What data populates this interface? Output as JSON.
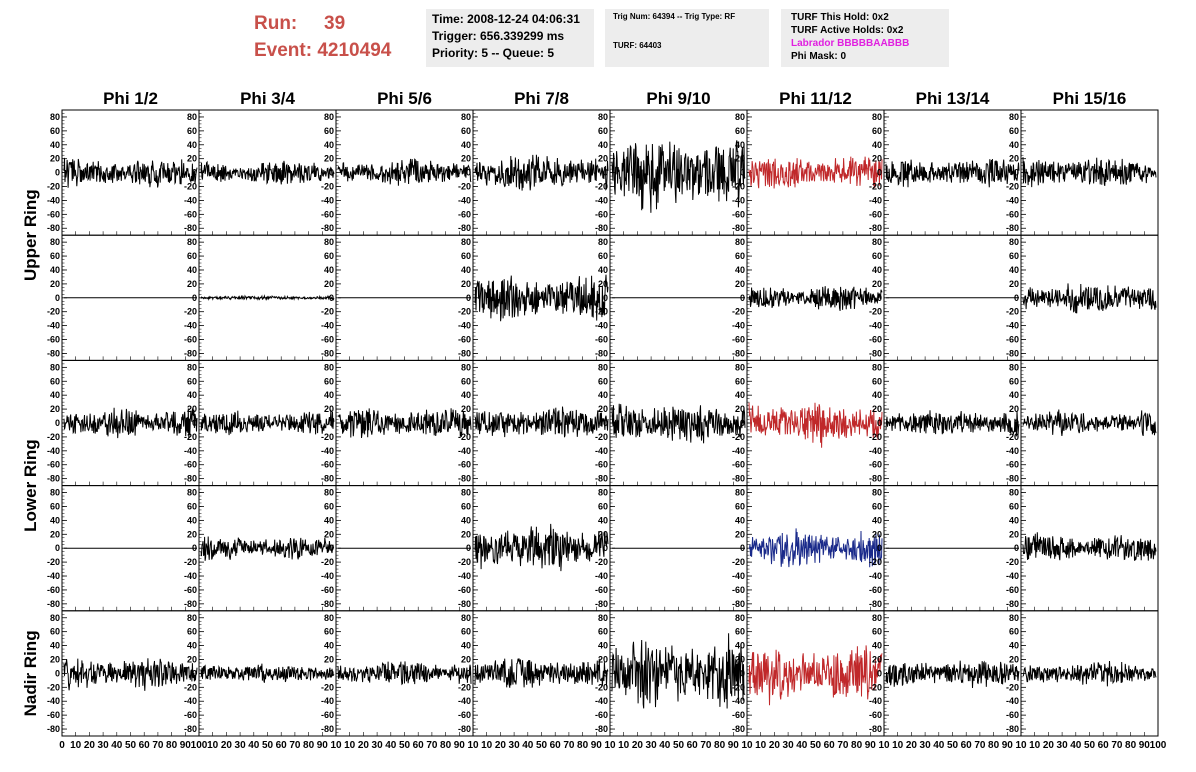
{
  "header": {
    "run_label": "Run:",
    "run_value": "39",
    "event_label": "Event:",
    "event_value": "4210494",
    "time": "Time: 2008-12-24 04:06:31",
    "trigger": "Trigger: 656.339299 ms",
    "priority": "Priority: 5 -- Queue: 5",
    "trig_num": "Trig Num: 64394 -- Trig Type: RF",
    "turf": "TURF: 64403",
    "turf_this_hold": "TURF This Hold: 0x2",
    "turf_active_holds": "TURF Active Holds: 0x2",
    "labrador": "Labrador BBBBBAABBB",
    "phi_mask": "Phi Mask: 0"
  },
  "colors": {
    "run_text": "#c8504a",
    "labrador_text": "#e020e0",
    "trace_default": "#000000",
    "trace_red": "#c0282a",
    "trace_blue": "#1a2a8a"
  },
  "chart_data": {
    "type": "line",
    "columns": [
      "Phi 1/2",
      "Phi 3/4",
      "Phi 5/6",
      "Phi 7/8",
      "Phi 9/10",
      "Phi 11/12",
      "Phi 13/14",
      "Phi 15/16"
    ],
    "rows": [
      "Upper Ring",
      "Lower Ring",
      "Nadir Ring"
    ],
    "xlim": [
      0,
      100
    ],
    "ylim": [
      -90,
      90
    ],
    "y_ticks": [
      -80,
      -60,
      -40,
      -20,
      0,
      20,
      40,
      60,
      80
    ],
    "x_ticks_first": [
      "0",
      "10",
      "20",
      "30",
      "40",
      "50",
      "60",
      "70",
      "80",
      "90",
      "100"
    ],
    "x_ticks_other": [
      "10",
      "20",
      "30",
      "40",
      "50",
      "60",
      "70",
      "80",
      "90",
      "10"
    ],
    "x_ticks_last": [
      "10",
      "20",
      "30",
      "40",
      "50",
      "60",
      "70",
      "80",
      "90",
      "100"
    ],
    "panels": [
      [
        {
          "amp": 15,
          "seed": 1,
          "color": "black"
        },
        {
          "amp": 13,
          "seed": 2,
          "color": "black"
        },
        {
          "amp": 14,
          "seed": 3,
          "color": "black"
        },
        {
          "amp": 20,
          "seed": 4,
          "color": "black"
        },
        {
          "amp": 40,
          "seed": 5,
          "color": "black"
        },
        {
          "amp": 18,
          "seed": 6,
          "color": "red"
        },
        {
          "amp": 15,
          "seed": 7,
          "color": "black"
        },
        {
          "amp": 16,
          "seed": 8,
          "color": "black"
        }
      ],
      [
        {
          "amp": 0,
          "seed": 9,
          "color": "black"
        },
        {
          "amp": 2,
          "seed": 10,
          "color": "black"
        },
        {
          "amp": 0,
          "seed": 11,
          "color": "black"
        },
        {
          "amp": 25,
          "seed": 12,
          "color": "black"
        },
        {
          "amp": 0,
          "seed": 13,
          "color": "black"
        },
        {
          "amp": 13,
          "seed": 14,
          "color": "black"
        },
        {
          "amp": 0,
          "seed": 15,
          "color": "black"
        },
        {
          "amp": 17,
          "seed": 16,
          "color": "black"
        }
      ],
      [
        {
          "amp": 17,
          "seed": 17,
          "color": "black"
        },
        {
          "amp": 13,
          "seed": 18,
          "color": "black"
        },
        {
          "amp": 16,
          "seed": 19,
          "color": "black"
        },
        {
          "amp": 17,
          "seed": 20,
          "color": "black"
        },
        {
          "amp": 24,
          "seed": 21,
          "color": "black"
        },
        {
          "amp": 24,
          "seed": 22,
          "color": "red"
        },
        {
          "amp": 14,
          "seed": 23,
          "color": "black"
        },
        {
          "amp": 13,
          "seed": 24,
          "color": "black"
        }
      ],
      [
        {
          "amp": 0,
          "seed": 25,
          "color": "black"
        },
        {
          "amp": 13,
          "seed": 26,
          "color": "black"
        },
        {
          "amp": 0,
          "seed": 27,
          "color": "black"
        },
        {
          "amp": 26,
          "seed": 28,
          "color": "black"
        },
        {
          "amp": 0,
          "seed": 29,
          "color": "black"
        },
        {
          "amp": 20,
          "seed": 30,
          "color": "blue"
        },
        {
          "amp": 0,
          "seed": 31,
          "color": "black"
        },
        {
          "amp": 15,
          "seed": 32,
          "color": "black"
        }
      ],
      [
        {
          "amp": 17,
          "seed": 33,
          "color": "black"
        },
        {
          "amp": 10,
          "seed": 34,
          "color": "black"
        },
        {
          "amp": 14,
          "seed": 35,
          "color": "black"
        },
        {
          "amp": 17,
          "seed": 36,
          "color": "black"
        },
        {
          "amp": 38,
          "seed": 37,
          "color": "black"
        },
        {
          "amp": 30,
          "seed": 38,
          "color": "red"
        },
        {
          "amp": 15,
          "seed": 39,
          "color": "black"
        },
        {
          "amp": 13,
          "seed": 40,
          "color": "black"
        }
      ]
    ]
  }
}
